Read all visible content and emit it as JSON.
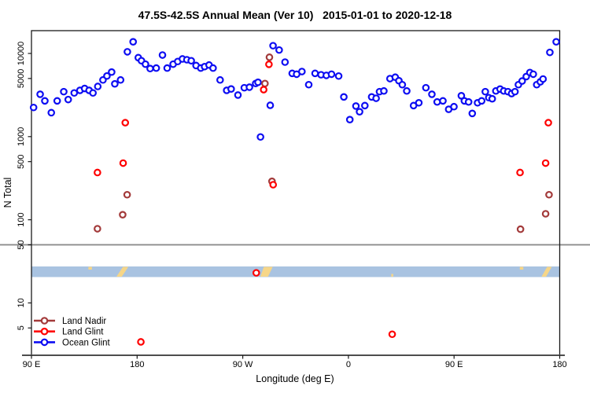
{
  "title": "47.5S-42.5S Annual Mean (Ver 10)   2015-01-01 to 2020-12-18",
  "axes": {
    "y": {
      "label": "N Total",
      "scale": "log",
      "ticks": [
        {
          "value": 10000,
          "label": "10000"
        },
        {
          "value": 5000,
          "label": "5000"
        },
        {
          "value": 1000,
          "label": "1000"
        },
        {
          "value": 500,
          "label": "500"
        },
        {
          "value": 100,
          "label": "100"
        },
        {
          "value": 50,
          "label": "50"
        },
        {
          "value": 10,
          "label": "10"
        },
        {
          "value": 5,
          "label": "5"
        }
      ]
    },
    "x": {
      "label": "Longitude (deg E)",
      "ticks": [
        {
          "deg": 90,
          "label": "90 E"
        },
        {
          "deg": 180,
          "label": "180"
        },
        {
          "deg": 270,
          "label": "90 W"
        },
        {
          "deg": 360,
          "label": "0"
        },
        {
          "deg": 450,
          "label": "90 E"
        },
        {
          "deg": 540,
          "label": "180"
        }
      ]
    }
  },
  "legend": [
    {
      "label": "Land Nadir",
      "color": "#A33A3A"
    },
    {
      "label": "Land Glint",
      "color": "#FF0000"
    },
    {
      "label": "Ocean Glint",
      "color": "#0D0DF2"
    }
  ],
  "colors": {
    "ocean_glint": "#0D0DF2",
    "land_glint": "#FF0000",
    "land_nadir": "#A33A3A",
    "reference_line": "#8C8C8C",
    "axis": "#1A1A1A",
    "strip_ocean": "#A9C3E1",
    "strip_land": "#F6D688"
  },
  "chart_data": {
    "type": "scatter",
    "title": "47.5S-42.5S Annual Mean (Ver 10)   2015-01-01 to 2020-12-18",
    "xlabel": "Longitude (deg E)",
    "ylabel": "N Total",
    "x_axis_deg_range": [
      90,
      540
    ],
    "x_note": "axis wraps: 90E,180,90W,0,90E,180 (deg stored as 90..540 continuing eastward)",
    "y_scale": "log",
    "ylim": [
      3,
      18000
    ],
    "grid": false,
    "legend_position": "bottom-left-inside",
    "reference_line_y": 50,
    "map_strip": {
      "description": "latitude band map 47.5S-42.5S: ocean blue, land tan",
      "y_value_range": [
        20,
        28
      ],
      "land_patches": [
        {
          "from_deg": 138.5,
          "to_deg": 141.5,
          "shape": "dot",
          "pos": "top"
        },
        {
          "from_deg": 162.4,
          "to_deg": 172.5,
          "shape": "slash"
        },
        {
          "from_deg": 285.0,
          "to_deg": 295.5,
          "shape": "slash_wide"
        },
        {
          "from_deg": 396.5,
          "to_deg": 398.0,
          "shape": "dot",
          "pos": "bottom"
        },
        {
          "from_deg": 506.0,
          "to_deg": 509.0,
          "shape": "dot",
          "pos": "top"
        },
        {
          "from_deg": 524.5,
          "to_deg": 533.2,
          "shape": "slash"
        }
      ]
    },
    "series": [
      {
        "name": "Ocean Glint",
        "color": "#0D0DF2",
        "points": [
          [
            91.8,
            2240
          ],
          [
            97.4,
            3230
          ],
          [
            101.4,
            2690
          ],
          [
            106.9,
            1940
          ],
          [
            111.9,
            2690
          ],
          [
            117.5,
            3470
          ],
          [
            121.3,
            2790
          ],
          [
            126.4,
            3350
          ],
          [
            131.3,
            3600
          ],
          [
            135.3,
            3790
          ],
          [
            139.1,
            3600
          ],
          [
            142.4,
            3350
          ],
          [
            146.5,
            4010
          ],
          [
            150.9,
            4800
          ],
          [
            154.3,
            5360
          ],
          [
            158.3,
            5970
          ],
          [
            161.0,
            4310
          ],
          [
            165.9,
            4800
          ],
          [
            171.7,
            10470
          ],
          [
            176.6,
            13800
          ],
          [
            181.0,
            8900
          ],
          [
            183.7,
            8170
          ],
          [
            187.1,
            7430
          ],
          [
            191.1,
            6580
          ],
          [
            196.3,
            6670
          ],
          [
            201.6,
            9570
          ],
          [
            205.6,
            6670
          ],
          [
            210.7,
            7430
          ],
          [
            214.6,
            8000
          ],
          [
            218.6,
            8590
          ],
          [
            222.4,
            8400
          ],
          [
            226.1,
            8170
          ],
          [
            230.2,
            7160
          ],
          [
            234.2,
            6670
          ],
          [
            237.5,
            6940
          ],
          [
            241.3,
            7260
          ],
          [
            244.7,
            6670
          ],
          [
            250.7,
            4800
          ],
          [
            256.3,
            3600
          ],
          [
            260.1,
            3740
          ],
          [
            265.9,
            3160
          ],
          [
            271.3,
            3870
          ],
          [
            275.7,
            3930
          ],
          [
            281.0,
            4350
          ],
          [
            283.0,
            4500
          ],
          [
            285.1,
            990
          ],
          [
            293.4,
            2380
          ],
          [
            295.8,
            12400
          ],
          [
            301.0,
            11000
          ],
          [
            306.0,
            7870
          ],
          [
            312.1,
            5760
          ],
          [
            315.9,
            5630
          ],
          [
            320.4,
            6060
          ],
          [
            326.2,
            4210
          ],
          [
            331.6,
            5760
          ],
          [
            336.7,
            5540
          ],
          [
            341.2,
            5450
          ],
          [
            345.6,
            5630
          ],
          [
            351.7,
            5350
          ],
          [
            356.1,
            3000
          ],
          [
            361.2,
            1600
          ],
          [
            366.4,
            2330
          ],
          [
            369.5,
            1990
          ],
          [
            374.0,
            2360
          ],
          [
            379.8,
            3000
          ],
          [
            383.6,
            2890
          ],
          [
            386.5,
            3470
          ],
          [
            390.2,
            3540
          ],
          [
            395.4,
            4980
          ],
          [
            399.9,
            5180
          ],
          [
            403.0,
            4700
          ],
          [
            405.9,
            4210
          ],
          [
            409.7,
            3540
          ],
          [
            415.5,
            2360
          ],
          [
            420.0,
            2550
          ],
          [
            426.0,
            3870
          ],
          [
            431.1,
            3230
          ],
          [
            435.6,
            2610
          ],
          [
            440.5,
            2690
          ],
          [
            445.4,
            2130
          ],
          [
            449.9,
            2290
          ],
          [
            456.2,
            3100
          ],
          [
            458.8,
            2690
          ],
          [
            462.4,
            2610
          ],
          [
            465.5,
            1900
          ],
          [
            470.0,
            2550
          ],
          [
            473.5,
            2690
          ],
          [
            476.6,
            3470
          ],
          [
            479.6,
            2940
          ],
          [
            482.5,
            2850
          ],
          [
            485.6,
            3540
          ],
          [
            489.2,
            3730
          ],
          [
            492.3,
            3540
          ],
          [
            495.9,
            3470
          ],
          [
            499.0,
            3290
          ],
          [
            501.9,
            3470
          ],
          [
            504.8,
            4210
          ],
          [
            508.0,
            4660
          ],
          [
            511.5,
            5270
          ],
          [
            514.6,
            5900
          ],
          [
            517.5,
            5630
          ],
          [
            520.4,
            4210
          ],
          [
            523.5,
            4560
          ],
          [
            525.8,
            4930
          ],
          [
            531.6,
            10300
          ],
          [
            537.0,
            13800
          ]
        ]
      },
      {
        "name": "Land Nadir",
        "color": "#A33A3A",
        "points": [
          [
            146.2,
            78
          ],
          [
            167.7,
            115
          ],
          [
            171.5,
            200
          ],
          [
            288.9,
            4350
          ],
          [
            292.7,
            9000
          ],
          [
            294.9,
            290
          ],
          [
            506.6,
            77
          ],
          [
            528.0,
            118
          ],
          [
            530.9,
            200
          ]
        ]
      },
      {
        "name": "Land Glint",
        "color": "#FF0000",
        "points": [
          [
            146.2,
            370
          ],
          [
            168.1,
            480
          ],
          [
            169.9,
            1470
          ],
          [
            183.2,
            3.4
          ],
          [
            281.5,
            23
          ],
          [
            287.8,
            3670
          ],
          [
            292.3,
            7400
          ],
          [
            295.9,
            264
          ],
          [
            397.3,
            4.2
          ],
          [
            506.2,
            370
          ],
          [
            528.0,
            480
          ],
          [
            530.3,
            1470
          ]
        ]
      }
    ]
  }
}
